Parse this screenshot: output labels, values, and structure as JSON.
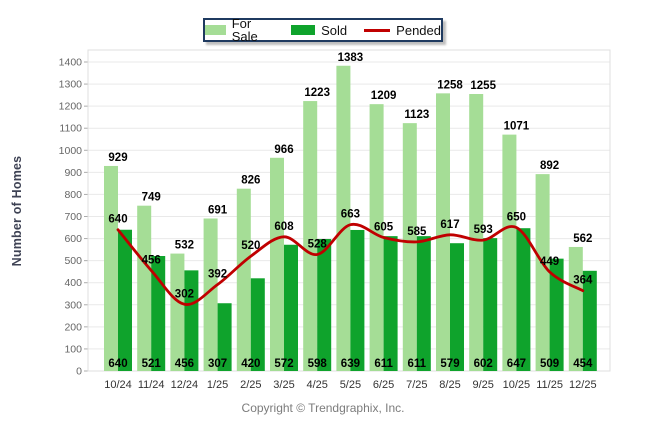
{
  "chart_data": {
    "type": "bar",
    "title": "",
    "ylabel": "Number of Homes",
    "xlabel": "",
    "ylim": [
      0,
      1400
    ],
    "ytick_step": 100,
    "grid": true,
    "legend_position": "top-center",
    "categories": [
      "10/24",
      "11/24",
      "12/24",
      "1/25",
      "2/25",
      "3/25",
      "4/25",
      "5/25",
      "6/25",
      "7/25",
      "8/25",
      "9/25",
      "10/25",
      "11/25",
      "12/25"
    ],
    "series": [
      {
        "name": "For Sale",
        "kind": "bar",
        "color": "#A5DD96",
        "values": [
          929,
          749,
          532,
          691,
          826,
          966,
          1223,
          1383,
          1209,
          1123,
          1258,
          1255,
          1071,
          892,
          562
        ]
      },
      {
        "name": "Sold",
        "kind": "bar",
        "color": "#0FA32C",
        "values": [
          640,
          521,
          456,
          307,
          420,
          572,
          598,
          639,
          611,
          611,
          579,
          602,
          647,
          509,
          454
        ]
      },
      {
        "name": "Pended",
        "kind": "line",
        "color": "#C00000",
        "values": [
          640,
          456,
          302,
          392,
          520,
          608,
          528,
          663,
          605,
          585,
          617,
          593,
          650,
          449,
          364
        ]
      }
    ],
    "axis_colors": {
      "gridline": "#E9E9E9",
      "plot_border": "#DFDFDF",
      "baseline": "#BDBDBD",
      "tick": "#ABABAB"
    }
  },
  "footer": {
    "text": "Copyright © Trendgraphix, Inc."
  }
}
